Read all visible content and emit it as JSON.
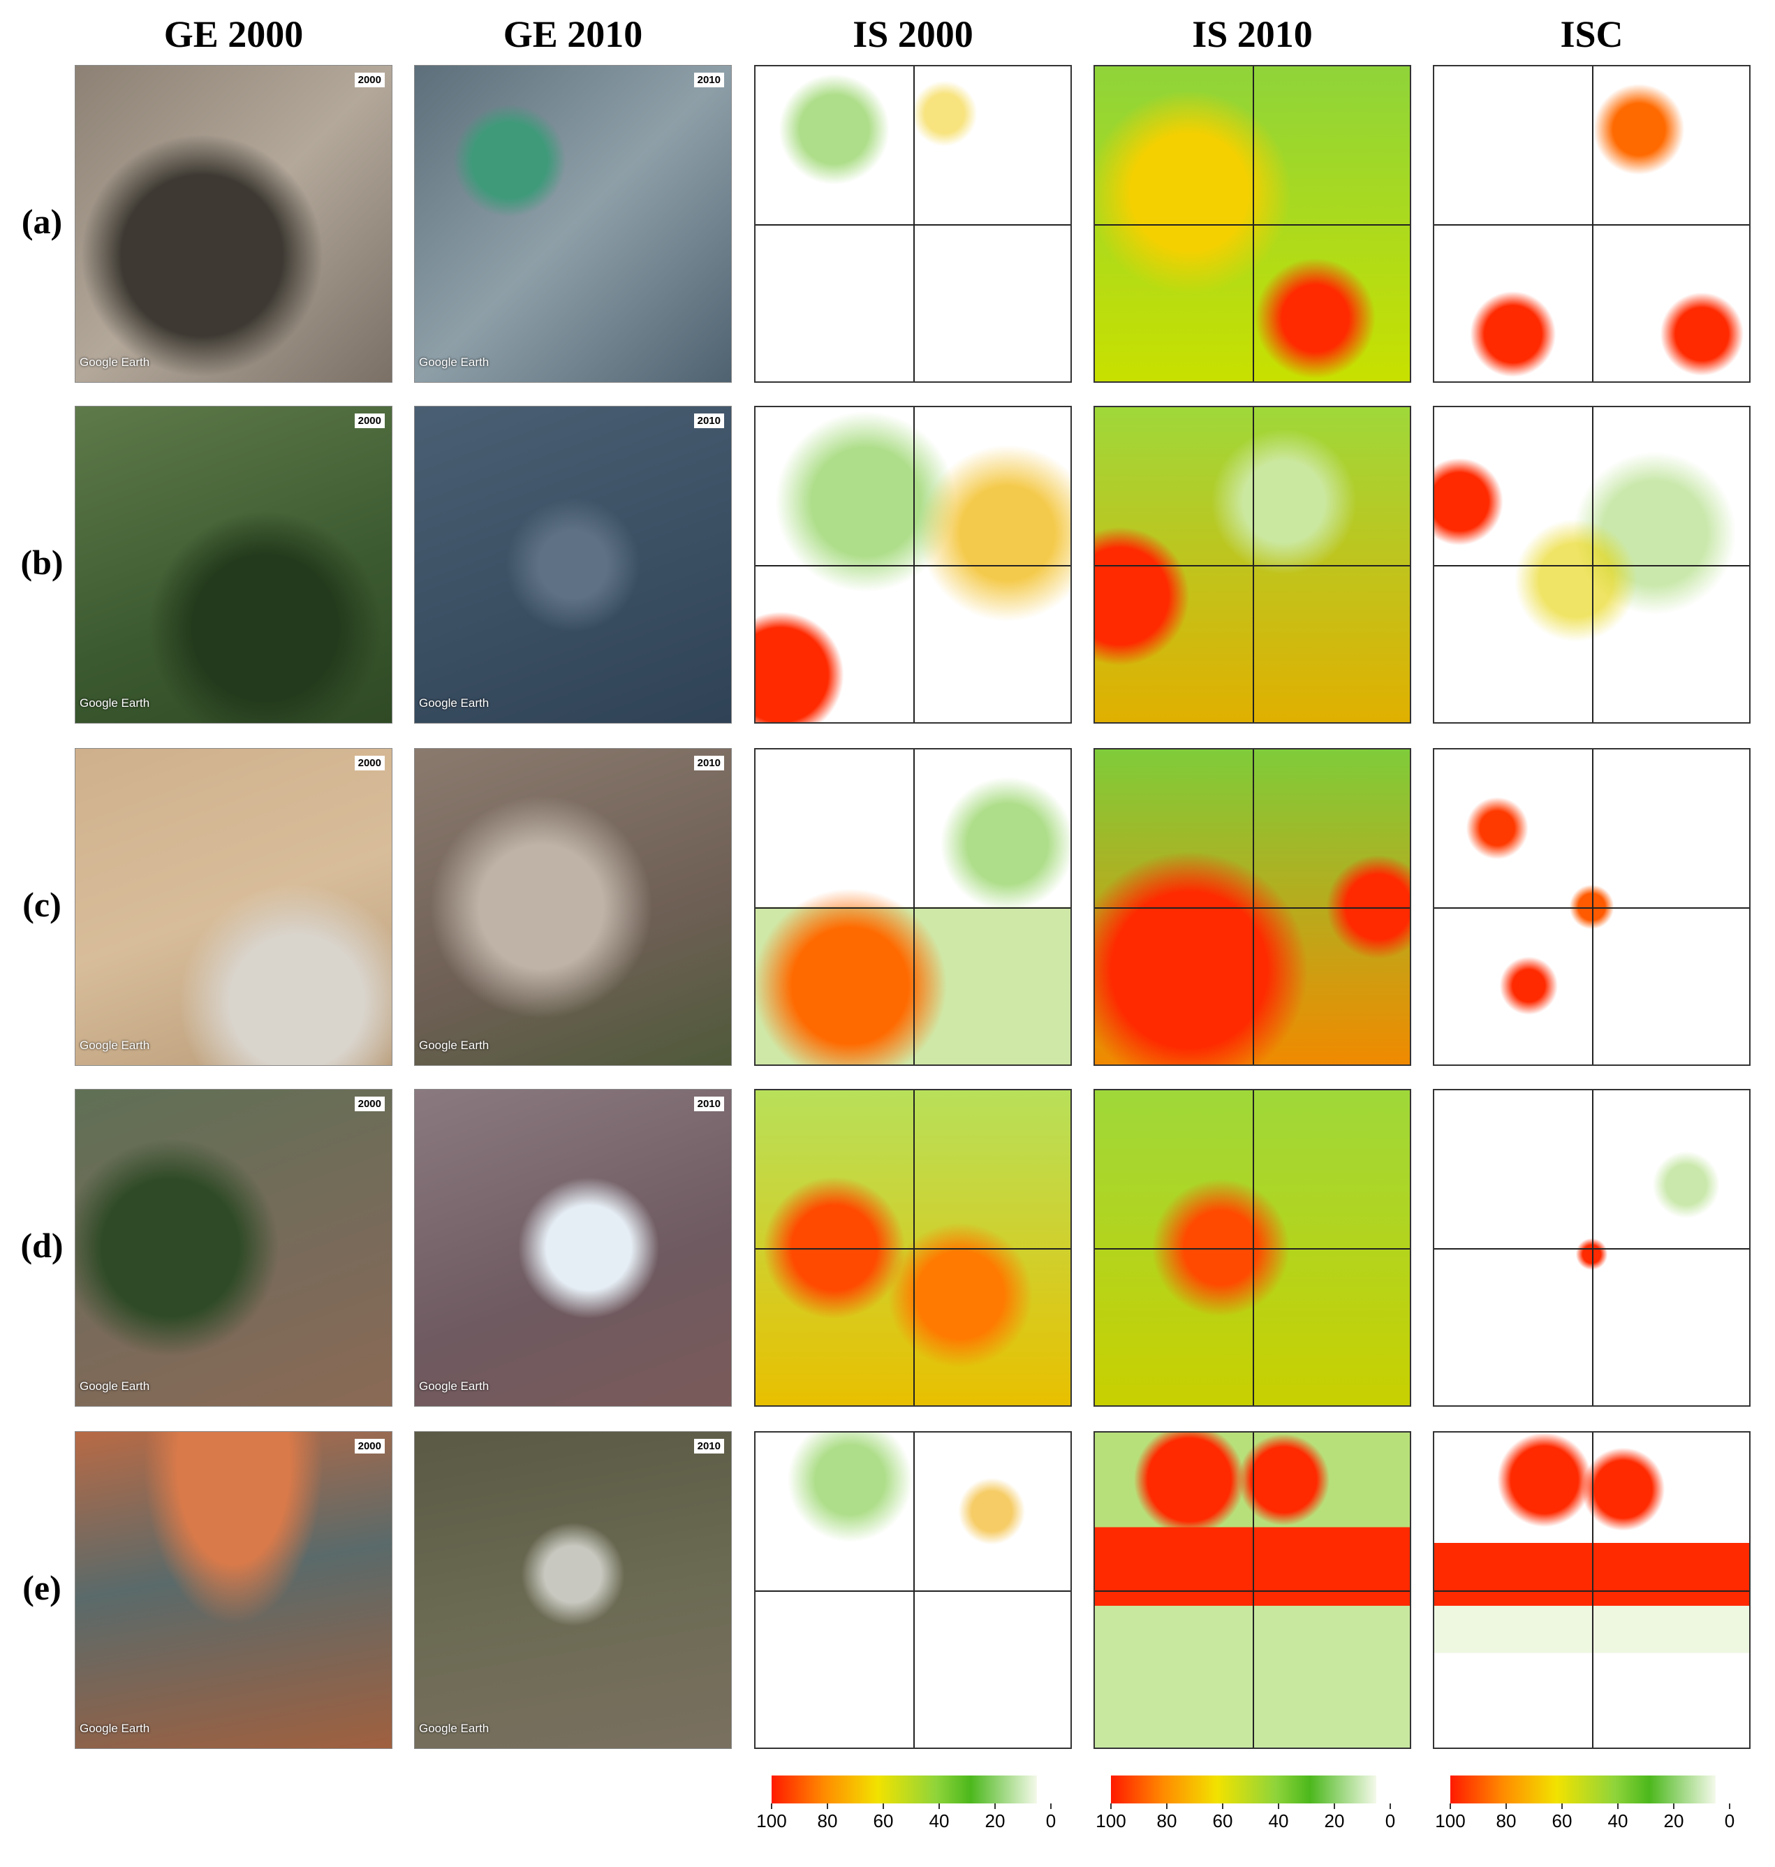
{
  "columns": [
    "GE 2000",
    "GE 2010",
    "IS 2000",
    "IS 2010",
    "ISC"
  ],
  "rows": [
    "(a)",
    "(b)",
    "(c)",
    "(d)",
    "(e)"
  ],
  "image_badges": [
    "2000",
    "2010"
  ],
  "watermark": "Google Earth",
  "colorbar": {
    "lim": [
      100,
      0
    ],
    "ticks": [
      100,
      80,
      60,
      40,
      20,
      0
    ]
  }
}
